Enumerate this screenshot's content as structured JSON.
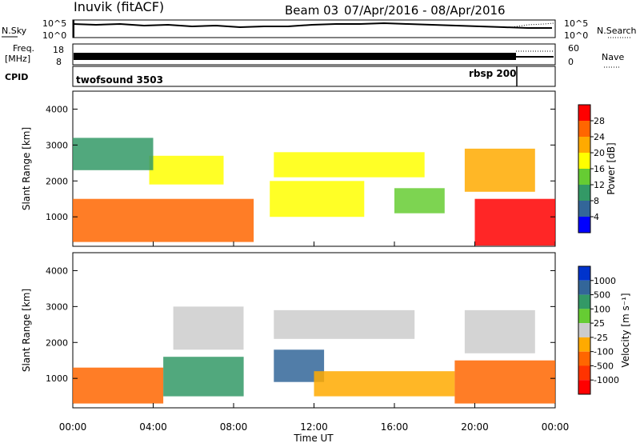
{
  "header": {
    "station": "Inuvik (fitACF)",
    "beam": "Beam 03",
    "dates": "07/Apr/2016 - 08/Apr/2016"
  },
  "nsky_panel": {
    "left_label": "N.Sky",
    "right_label": "N.Search",
    "left_ticks": [
      "10^5",
      "10^0"
    ],
    "right_ticks": [
      "10^5",
      "10^0"
    ]
  },
  "freq_panel": {
    "left_label_1": "Freq.",
    "left_label_2": "[MHz]",
    "left_ticks": [
      "18",
      "8"
    ],
    "right_label": "Nave",
    "right_ticks": [
      "60",
      "0"
    ]
  },
  "cpid_panel": {
    "label": "CPID",
    "segments": [
      {
        "name": "twofsound 3503",
        "start_hour": 0,
        "end_hour": 22
      },
      {
        "name": "rbsp 200",
        "start_hour": 22,
        "end_hour": 24
      }
    ]
  },
  "axes": {
    "ylabel": "Slant Range [km]",
    "xlabel": "Time UT",
    "xticks": [
      "00:00",
      "04:00",
      "08:00",
      "12:00",
      "16:00",
      "20:00",
      "00:00"
    ],
    "yticks": [
      "1000",
      "2000",
      "3000",
      "4000"
    ]
  },
  "power_colorbar": {
    "label": "Power [dB]",
    "ticks": [
      "28",
      "24",
      "20",
      "16",
      "12",
      "8",
      "4"
    ],
    "colors": [
      "#ff0000",
      "#ff6600",
      "#ffaa00",
      "#ffff00",
      "#66cc33",
      "#339966",
      "#336699",
      "#0000ff"
    ]
  },
  "velocity_colorbar": {
    "label": "Velocity [m s⁻¹]",
    "ticks": [
      "1000",
      "500",
      "100",
      "25",
      "-25",
      "-100",
      "-500",
      "-1000"
    ],
    "colors": [
      "#0033cc",
      "#336699",
      "#339966",
      "#66cc33",
      "#cccccc",
      "#ffaa00",
      "#ff6600",
      "#ff3300",
      "#ff0000"
    ]
  },
  "chart_data": {
    "type": "heatmap",
    "x_range_hours": [
      0,
      24
    ],
    "y_range_km": [
      180,
      4500
    ],
    "grid": false,
    "power_panel": {
      "regions": [
        {
          "t0": 0.0,
          "t1": 9.0,
          "r0": 300,
          "r1": 1500,
          "value_db": 24
        },
        {
          "t0": 3.8,
          "t1": 7.5,
          "r0": 1900,
          "r1": 2700,
          "value_db": 16
        },
        {
          "t0": 0.0,
          "t1": 4.0,
          "r0": 2300,
          "r1": 3200,
          "value_db": 8
        },
        {
          "t0": 9.8,
          "t1": 14.5,
          "r0": 1000,
          "r1": 2000,
          "value_db": 16
        },
        {
          "t0": 10.0,
          "t1": 17.5,
          "r0": 2100,
          "r1": 2800,
          "value_db": 16
        },
        {
          "t0": 16.0,
          "t1": 18.5,
          "r0": 1100,
          "r1": 1800,
          "value_db": 12
        },
        {
          "t0": 19.5,
          "t1": 23.0,
          "r0": 1700,
          "r1": 2900,
          "value_db": 20
        },
        {
          "t0": 20.0,
          "t1": 24.0,
          "r0": 200,
          "r1": 1500,
          "value_db": 28
        }
      ]
    },
    "velocity_panel": {
      "regions": [
        {
          "t0": 0.0,
          "t1": 4.5,
          "r0": 300,
          "r1": 1300,
          "value_ms": -300
        },
        {
          "t0": 4.5,
          "t1": 8.5,
          "r0": 500,
          "r1": 1600,
          "value_ms": 300
        },
        {
          "t0": 5.0,
          "t1": 8.5,
          "r0": 1800,
          "r1": 3000,
          "value_ms": 0
        },
        {
          "t0": 10.0,
          "t1": 12.5,
          "r0": 900,
          "r1": 1800,
          "value_ms": 600
        },
        {
          "t0": 10.0,
          "t1": 17.0,
          "r0": 2100,
          "r1": 2900,
          "value_ms": 0
        },
        {
          "t0": 12.0,
          "t1": 19.0,
          "r0": 500,
          "r1": 1200,
          "value_ms": -50
        },
        {
          "t0": 19.0,
          "t1": 24.0,
          "r0": 300,
          "r1": 1500,
          "value_ms": -500
        },
        {
          "t0": 19.5,
          "t1": 23.0,
          "r0": 1700,
          "r1": 2900,
          "value_ms": 0
        }
      ]
    }
  }
}
